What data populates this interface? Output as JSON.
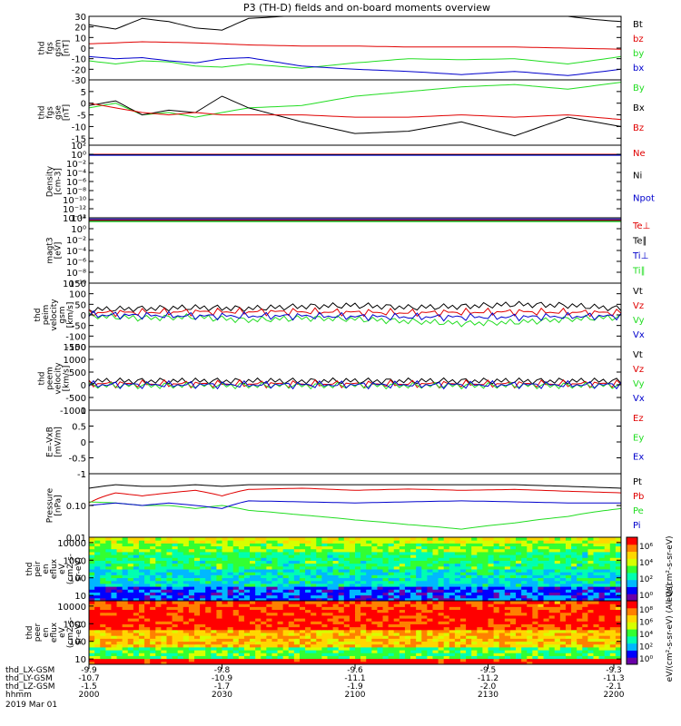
{
  "title": "P3 (TH-D) fields and on-board moments overview",
  "colors": {
    "black": "#000000",
    "red": "#e00000",
    "green": "#22dd22",
    "blue": "#0000cc"
  },
  "chart_data": [
    {
      "id": "fgs-gsm",
      "type": "line",
      "ylabel": [
        "thd",
        "fgs",
        "gsm",
        "[nT]"
      ],
      "ylim": [
        -30,
        30
      ],
      "yticks": [
        -30,
        -20,
        -10,
        0,
        10,
        20,
        30
      ],
      "series": [
        {
          "name": "Bt",
          "color": "black",
          "x": [
            0,
            0.05,
            0.1,
            0.15,
            0.2,
            0.25,
            0.3,
            0.4,
            0.5,
            0.6,
            0.7,
            0.8,
            0.9,
            0.95,
            1
          ],
          "y": [
            22,
            18,
            28,
            25,
            19,
            17,
            28,
            31,
            31,
            31,
            31,
            31,
            30,
            27,
            25
          ]
        },
        {
          "name": "bz",
          "color": "red",
          "x": [
            0,
            0.1,
            0.2,
            0.3,
            0.4,
            0.5,
            0.6,
            0.7,
            0.8,
            0.9,
            1
          ],
          "y": [
            4,
            6,
            5,
            3,
            2,
            2,
            1,
            1,
            1,
            0,
            -1
          ]
        },
        {
          "name": "by",
          "color": "green",
          "x": [
            0,
            0.05,
            0.1,
            0.15,
            0.2,
            0.25,
            0.3,
            0.4,
            0.5,
            0.6,
            0.7,
            0.8,
            0.9,
            1
          ],
          "y": [
            -12,
            -15,
            -12,
            -13,
            -17,
            -18,
            -15,
            -19,
            -14,
            -10,
            -11,
            -10,
            -15,
            -8
          ]
        },
        {
          "name": "bx",
          "color": "blue",
          "x": [
            0,
            0.05,
            0.1,
            0.15,
            0.2,
            0.25,
            0.3,
            0.4,
            0.5,
            0.6,
            0.7,
            0.8,
            0.9,
            1
          ],
          "y": [
            -8,
            -10,
            -9,
            -12,
            -14,
            -10,
            -9,
            -17,
            -20,
            -22,
            -25,
            -22,
            -26,
            -20
          ]
        }
      ]
    },
    {
      "id": "fgs-gse",
      "type": "line",
      "ylabel": [
        "thd",
        "fgs",
        "gse",
        "[nT]"
      ],
      "ylim": [
        -18,
        10
      ],
      "yticks": [
        -15,
        -10,
        -5,
        0,
        5
      ],
      "series": [
        {
          "name": "By",
          "color": "green",
          "x": [
            0,
            0.05,
            0.1,
            0.15,
            0.2,
            0.25,
            0.3,
            0.4,
            0.5,
            0.6,
            0.7,
            0.8,
            0.9,
            1
          ],
          "y": [
            -2,
            0,
            -5,
            -4,
            -6,
            -4,
            -2,
            -1,
            3,
            5,
            7,
            8,
            6,
            9
          ]
        },
        {
          "name": "Bx",
          "color": "black",
          "x": [
            0,
            0.05,
            0.1,
            0.15,
            0.2,
            0.25,
            0.3,
            0.4,
            0.5,
            0.6,
            0.7,
            0.8,
            0.9,
            1
          ],
          "y": [
            -1,
            1,
            -5,
            -3,
            -4,
            3,
            -2,
            -8,
            -13,
            -12,
            -8,
            -14,
            -6,
            -10
          ]
        },
        {
          "name": "Bz",
          "color": "red",
          "x": [
            0,
            0.05,
            0.1,
            0.15,
            0.2,
            0.25,
            0.3,
            0.4,
            0.5,
            0.6,
            0.7,
            0.8,
            0.9,
            1
          ],
          "y": [
            0,
            -2,
            -4,
            -5,
            -4,
            -5,
            -5,
            -5,
            -6,
            -6,
            -5,
            -6,
            -5,
            -7
          ]
        }
      ]
    },
    {
      "id": "density",
      "type": "line",
      "log": true,
      "ylabel": [
        "Density",
        "[cm-3]"
      ],
      "ylim": [
        1e-14,
        100.0
      ],
      "yticks": [
        {
          "v": 100.0,
          "t": "10²"
        },
        {
          "v": 1.0,
          "t": "10⁰"
        },
        {
          "v": 0.01,
          "t": "10⁻²"
        },
        {
          "v": 0.0001,
          "t": "10⁻⁴"
        },
        {
          "v": 1e-06,
          "t": "10⁻⁶"
        },
        {
          "v": 1e-08,
          "t": "10⁻⁸"
        },
        {
          "v": 1e-10,
          "t": "10⁻¹⁰"
        },
        {
          "v": 1e-12,
          "t": "10⁻¹²"
        },
        {
          "v": 1e-14,
          "t": "10⁻¹⁴"
        }
      ],
      "series": [
        {
          "name": "Ne",
          "color": "red",
          "x": [
            0,
            1
          ],
          "y": [
            1,
            1
          ]
        },
        {
          "name": "Ni",
          "color": "black",
          "x": [
            0,
            1
          ],
          "y": [
            0.8,
            0.8
          ]
        },
        {
          "name": "Npot",
          "color": "blue",
          "x": [
            0,
            1
          ],
          "y": [
            0.6,
            0.6
          ]
        }
      ]
    },
    {
      "id": "temperature",
      "type": "line",
      "log": true,
      "ylabel": [
        "magt3",
        "[eV]"
      ],
      "ylim": [
        1e-10,
        100.0
      ],
      "yticks": [
        {
          "v": 100.0,
          "t": "10²"
        },
        {
          "v": 1.0,
          "t": "10⁰"
        },
        {
          "v": 0.01,
          "t": "10⁻²"
        },
        {
          "v": 0.0001,
          "t": "10⁻⁴"
        },
        {
          "v": 1e-06,
          "t": "10⁻⁶"
        },
        {
          "v": 1e-08,
          "t": "10⁻⁸"
        },
        {
          "v": 1e-10,
          "t": "10⁻¹⁰"
        }
      ],
      "series": [
        {
          "name": "Te⊥",
          "color": "red",
          "x": [
            0,
            1
          ],
          "y": [
            40,
            40
          ]
        },
        {
          "name": "Te∥",
          "color": "black",
          "x": [
            0,
            1
          ],
          "y": [
            30,
            30
          ]
        },
        {
          "name": "Ti⊥",
          "color": "blue",
          "x": [
            0,
            1
          ],
          "y": [
            60,
            60
          ]
        },
        {
          "name": "Ti∥",
          "color": "green",
          "x": [
            0,
            1
          ],
          "y": [
            20,
            20
          ]
        }
      ]
    },
    {
      "id": "peim-velocity",
      "type": "line",
      "ylabel": [
        "thd",
        "peim",
        "velocity",
        "gsm",
        "[km/s]"
      ],
      "ylim": [
        -150,
        150
      ],
      "yticks": [
        -150,
        -100,
        -50,
        0,
        50,
        100,
        150
      ],
      "series": [
        {
          "name": "Vt",
          "color": "black",
          "x": [
            0,
            0.1,
            0.2,
            0.3,
            0.4,
            0.5,
            0.6,
            0.7,
            0.8,
            0.9,
            1
          ],
          "y": [
            25,
            30,
            35,
            30,
            40,
            45,
            35,
            40,
            50,
            45,
            30
          ]
        },
        {
          "name": "Vz",
          "color": "red",
          "x": [
            0,
            0.2,
            0.4,
            0.6,
            0.8,
            1
          ],
          "y": [
            10,
            15,
            15,
            10,
            15,
            10
          ]
        },
        {
          "name": "Vy",
          "color": "green",
          "x": [
            0,
            0.1,
            0.2,
            0.3,
            0.4,
            0.5,
            0.6,
            0.7,
            0.8,
            0.9,
            1
          ],
          "y": [
            -5,
            -15,
            -10,
            -25,
            -15,
            -20,
            -30,
            -40,
            -35,
            -20,
            -10
          ]
        },
        {
          "name": "Vx",
          "color": "blue",
          "x": [
            0,
            0.2,
            0.4,
            0.6,
            0.8,
            1
          ],
          "y": [
            0,
            -5,
            -5,
            -10,
            -10,
            -5
          ]
        }
      ]
    },
    {
      "id": "peem-velocity",
      "type": "line",
      "ylabel": [
        "thd",
        "peem",
        "velocity",
        "[km/s]"
      ],
      "ylim": [
        -1000,
        1500
      ],
      "yticks": [
        -1000,
        -500,
        0,
        500,
        1000,
        1500
      ],
      "series": [
        {
          "name": "Vt",
          "color": "black",
          "x": [
            0,
            0.5,
            1
          ],
          "y": [
            150,
            150,
            150
          ]
        },
        {
          "name": "Vz",
          "color": "red",
          "x": [
            0,
            0.5,
            1
          ],
          "y": [
            40,
            30,
            40
          ]
        },
        {
          "name": "Vy",
          "color": "green",
          "x": [
            0,
            0.5,
            1
          ],
          "y": [
            -30,
            -30,
            -30
          ]
        },
        {
          "name": "Vx",
          "color": "blue",
          "x": [
            0,
            0.5,
            1
          ],
          "y": [
            0,
            0,
            0
          ]
        }
      ]
    },
    {
      "id": "efield",
      "type": "line",
      "ylabel": [
        "E=-VxB",
        "[mV/m]"
      ],
      "ylim": [
        -1.0,
        1.0
      ],
      "yticks": [
        -1.0,
        -0.5,
        0.0,
        0.5,
        1.0
      ],
      "series": [
        {
          "name": "Ez",
          "color": "red",
          "x": [],
          "y": []
        },
        {
          "name": "Ey",
          "color": "green",
          "x": [],
          "y": []
        },
        {
          "name": "Ex",
          "color": "blue",
          "x": [],
          "y": []
        }
      ]
    },
    {
      "id": "pressure",
      "type": "line",
      "log": true,
      "ylabel": [
        "Pressure",
        "[nPa]"
      ],
      "ylim": [
        0.01,
        1.0
      ],
      "yticks": [
        {
          "v": 1,
          "t": "1"
        },
        {
          "v": 0.1,
          "t": "0.10"
        },
        {
          "v": 0.01,
          "t": "0.01"
        }
      ],
      "series": [
        {
          "name": "Pt",
          "color": "black",
          "x": [
            0,
            0.05,
            0.1,
            0.15,
            0.2,
            0.25,
            0.3,
            0.4,
            0.5,
            0.6,
            0.7,
            0.8,
            0.9,
            1
          ],
          "y": [
            0.35,
            0.45,
            0.4,
            0.4,
            0.45,
            0.4,
            0.45,
            0.45,
            0.45,
            0.45,
            0.45,
            0.45,
            0.4,
            0.35
          ]
        },
        {
          "name": "Pb",
          "color": "red",
          "x": [
            0,
            0.05,
            0.1,
            0.15,
            0.2,
            0.25,
            0.3,
            0.4,
            0.5,
            0.6,
            0.7,
            0.8,
            0.9,
            1
          ],
          "y": [
            0.12,
            0.25,
            0.2,
            0.25,
            0.3,
            0.2,
            0.32,
            0.35,
            0.3,
            0.33,
            0.3,
            0.32,
            0.28,
            0.25
          ]
        },
        {
          "name": "Pe",
          "color": "green",
          "x": [
            0,
            0.05,
            0.1,
            0.15,
            0.2,
            0.25,
            0.3,
            0.4,
            0.5,
            0.6,
            0.7,
            0.8,
            0.9,
            1
          ],
          "y": [
            0.13,
            0.12,
            0.1,
            0.1,
            0.08,
            0.1,
            0.07,
            0.05,
            0.035,
            0.025,
            0.018,
            0.028,
            0.045,
            0.08
          ]
        },
        {
          "name": "Pi",
          "color": "blue",
          "x": [
            0,
            0.05,
            0.1,
            0.15,
            0.2,
            0.25,
            0.3,
            0.4,
            0.5,
            0.6,
            0.7,
            0.8,
            0.9,
            1
          ],
          "y": [
            0.1,
            0.12,
            0.1,
            0.12,
            0.1,
            0.08,
            0.14,
            0.13,
            0.12,
            0.13,
            0.14,
            0.13,
            0.12,
            0.12
          ]
        }
      ]
    },
    {
      "id": "peir-spectrogram",
      "type": "heatmap",
      "log": true,
      "ylabel": [
        "thd",
        "peir",
        "en",
        "eflux",
        "eV",
        "(cm2-s-",
        "sr-eV)"
      ],
      "ylim": [
        5,
        20000
      ],
      "yticks": [
        {
          "v": 10,
          "t": "10"
        },
        {
          "v": 100,
          "t": "100"
        },
        {
          "v": 1000,
          "t": "1000"
        },
        {
          "v": 10000,
          "t": "10000"
        }
      ],
      "palette": [
        "#6a00a8",
        "#0000ff",
        "#00b8ff",
        "#00ffb0",
        "#32ff32",
        "#d7ff00",
        "#ffd700",
        "#ff8000",
        "#ff0000"
      ],
      "bands": [
        {
          "emin": 5,
          "emax": 30,
          "level": 0.2
        },
        {
          "emin": 30,
          "emax": 300,
          "level": 0.35
        },
        {
          "emin": 300,
          "emax": 3000,
          "level": 0.45
        },
        {
          "emin": 3000,
          "emax": 8000,
          "level": 0.55
        },
        {
          "emin": 8000,
          "emax": 20000,
          "level": 0.65
        }
      ],
      "colorbar": {
        "label": "eV/(cm²-s-sr-eV)",
        "ticks": [
          "10⁶",
          "10⁴",
          "10²",
          "10⁰"
        ]
      }
    },
    {
      "id": "peer-spectrogram",
      "type": "heatmap",
      "log": true,
      "ylabel": [
        "thd",
        "peer",
        "en",
        "eflux",
        "eV",
        "(cm2-s-",
        "sr-eV)"
      ],
      "ylim": [
        5,
        20000
      ],
      "yticks": [
        {
          "v": 10,
          "t": "10"
        },
        {
          "v": 100,
          "t": "100"
        },
        {
          "v": 1000,
          "t": "1000"
        },
        {
          "v": 10000,
          "t": "10000"
        }
      ],
      "palette": [
        "#6a00a8",
        "#0000ff",
        "#00b8ff",
        "#00ffb0",
        "#32ff32",
        "#d7ff00",
        "#ffd700",
        "#ff8000",
        "#ff0000"
      ],
      "bands": [
        {
          "emin": 5,
          "emax": 12,
          "level": 1.0
        },
        {
          "emin": 12,
          "emax": 40,
          "level": 0.5
        },
        {
          "emin": 40,
          "emax": 400,
          "level": 0.75
        },
        {
          "emin": 400,
          "emax": 6000,
          "level": 0.95
        },
        {
          "emin": 6000,
          "emax": 20000,
          "level": 0.9
        }
      ],
      "colorbar": {
        "label": "eV/(cm²-s-sr-eV) (All Qs)",
        "ticks": [
          "10⁸",
          "10⁶",
          "10⁴",
          "10²",
          "10⁰"
        ]
      }
    }
  ],
  "xaxis": {
    "row_labels": [
      "thd_LX-GSM",
      "thd_LY-GSM",
      "thd_LZ-GSM",
      "hhmm",
      "2019 Mar 01"
    ],
    "ticks": [
      {
        "pos": 0.0,
        "values": [
          "-9.9",
          "-10.7",
          "-1.5",
          "2000"
        ]
      },
      {
        "pos": 0.3333,
        "values": [
          "-9.8",
          "-10.9",
          "-1.7",
          "2030"
        ]
      },
      {
        "pos": 0.6667,
        "values": [
          "-9.6",
          "-11.1",
          "-1.9",
          "2100"
        ]
      },
      {
        "pos": 1.0,
        "values": [
          "-9.5",
          "-11.2",
          "-2.0",
          "2130"
        ]
      },
      {
        "pos": 1.3333,
        "values": [
          "-9.3",
          "-11.3",
          "-2.1",
          "2200"
        ]
      }
    ]
  }
}
